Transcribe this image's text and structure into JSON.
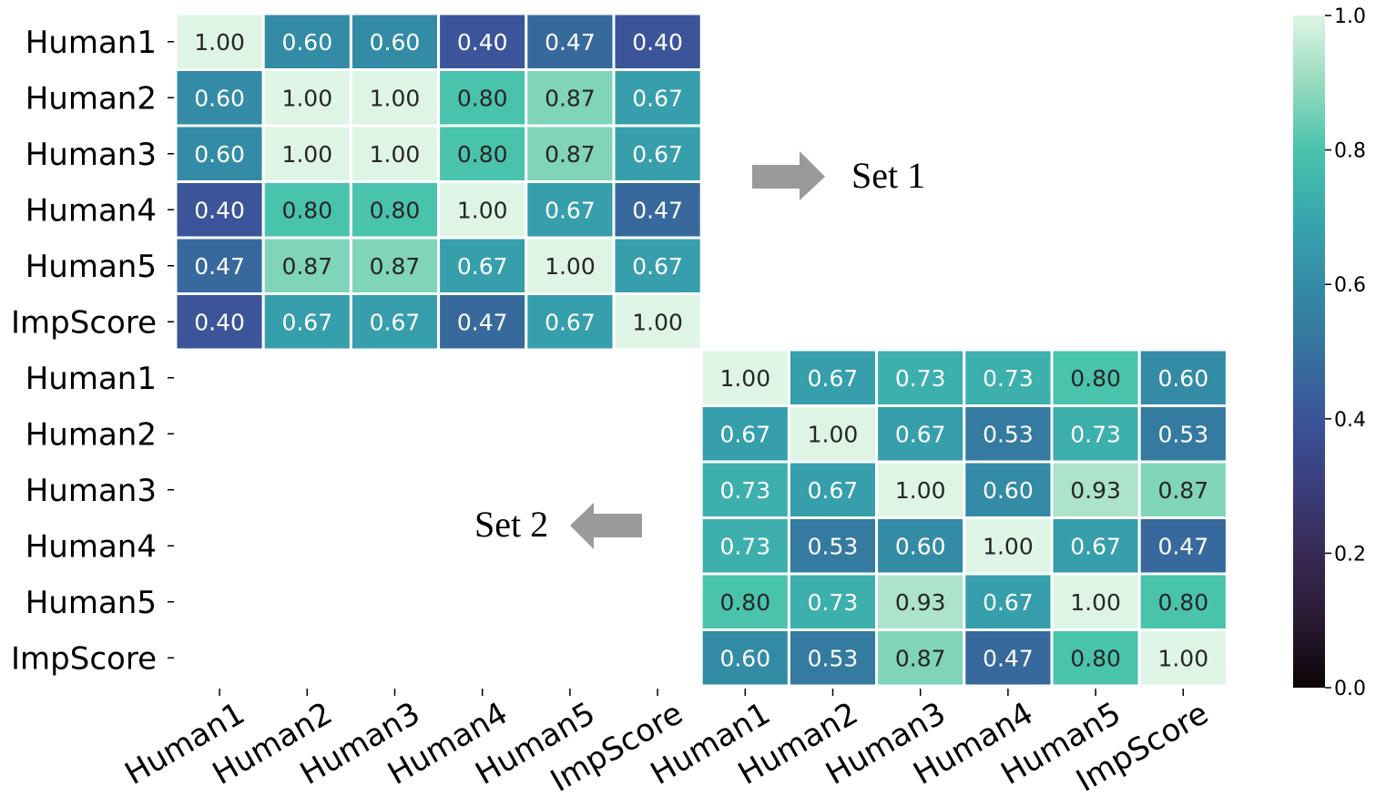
{
  "chart_data": {
    "type": "heatmap",
    "title": "",
    "colormap": "mako",
    "vmin": 0.0,
    "vmax": 1.0,
    "row_labels": [
      "Human1",
      "Human2",
      "Human3",
      "Human4",
      "Human5",
      "ImpScore",
      "Human1",
      "Human2",
      "Human3",
      "Human4",
      "Human5",
      "ImpScore"
    ],
    "col_labels": [
      "Human1",
      "Human2",
      "Human3",
      "Human4",
      "Human5",
      "ImpScore",
      "Human1",
      "Human2",
      "Human3",
      "Human4",
      "Human5",
      "ImpScore"
    ],
    "blocks": [
      {
        "name": "Set 1",
        "arrow": "right",
        "values": [
          [
            "1.00",
            "0.60",
            "0.60",
            "0.40",
            "0.47",
            "0.40"
          ],
          [
            "0.60",
            "1.00",
            "1.00",
            "0.80",
            "0.87",
            "0.67"
          ],
          [
            "0.60",
            "1.00",
            "1.00",
            "0.80",
            "0.87",
            "0.67"
          ],
          [
            "0.40",
            "0.80",
            "0.80",
            "1.00",
            "0.67",
            "0.47"
          ],
          [
            "0.47",
            "0.87",
            "0.87",
            "0.67",
            "1.00",
            "0.67"
          ],
          [
            "0.40",
            "0.67",
            "0.67",
            "0.47",
            "0.67",
            "1.00"
          ]
        ]
      },
      {
        "name": "Set 2",
        "arrow": "left",
        "values": [
          [
            "1.00",
            "0.67",
            "0.73",
            "0.73",
            "0.80",
            "0.60"
          ],
          [
            "0.67",
            "1.00",
            "0.67",
            "0.53",
            "0.73",
            "0.53"
          ],
          [
            "0.73",
            "0.67",
            "1.00",
            "0.60",
            "0.93",
            "0.87"
          ],
          [
            "0.73",
            "0.53",
            "0.60",
            "1.00",
            "0.67",
            "0.47"
          ],
          [
            "0.80",
            "0.73",
            "0.93",
            "0.67",
            "1.00",
            "0.80"
          ],
          [
            "0.60",
            "0.53",
            "0.87",
            "0.47",
            "0.80",
            "1.00"
          ]
        ]
      }
    ],
    "colorbar": {
      "ticks": [
        "0.0",
        "0.2",
        "0.4",
        "0.6",
        "0.8",
        "1.0"
      ]
    }
  }
}
